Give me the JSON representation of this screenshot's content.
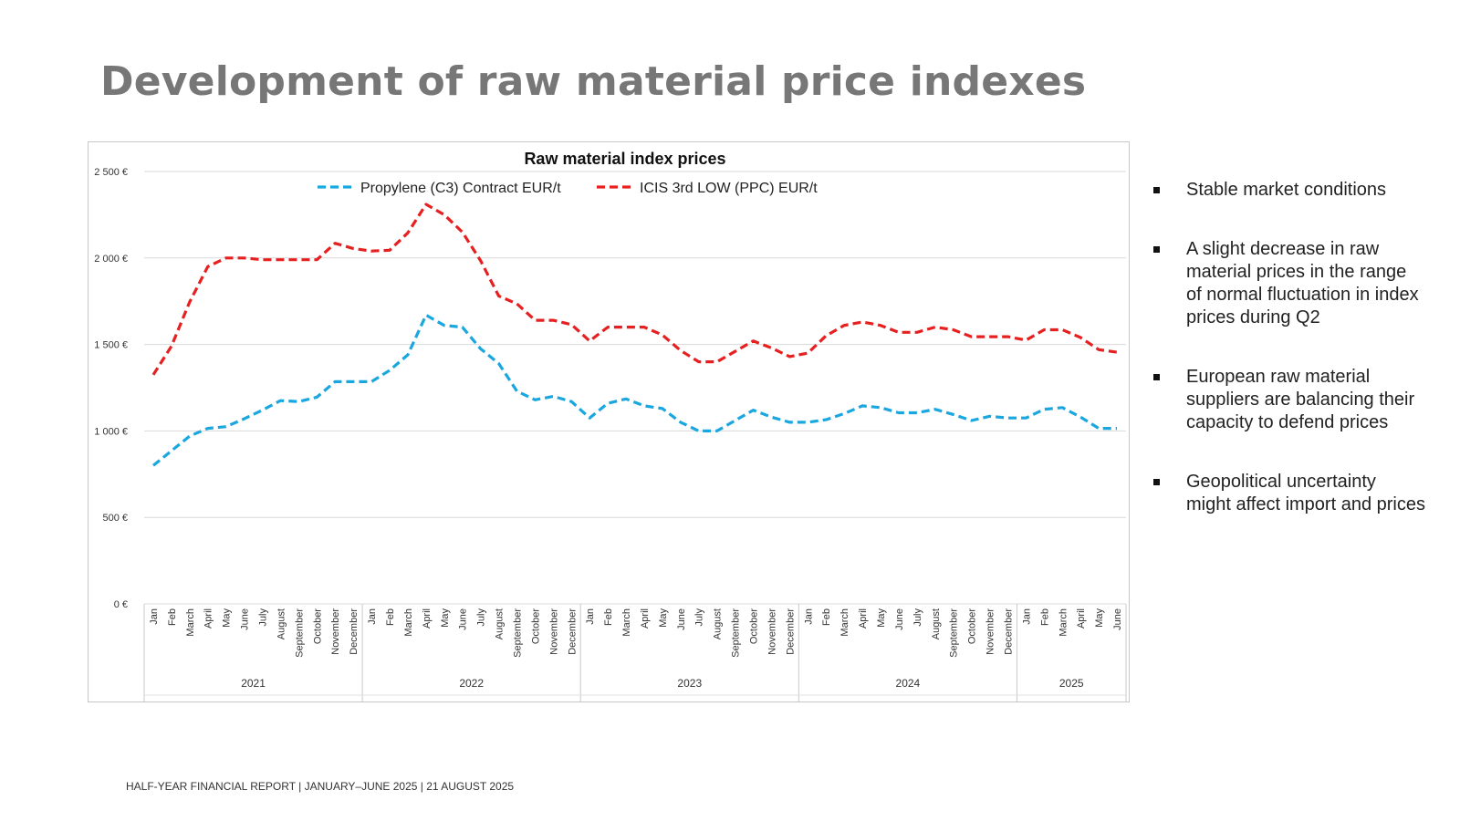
{
  "page": {
    "title": "Development of raw material price indexes",
    "footer": "HALF-YEAR FINANCIAL REPORT  |  JANUARY–JUNE 2025  |  21 AUGUST 2025"
  },
  "bullets": [
    "Stable market conditions",
    "A slight decrease in raw material prices in the range of normal fluctuation in index prices during Q2",
    "European raw material suppliers are balancing their capacity to defend prices",
    "Geopolitical uncertainty might affect import and prices"
  ],
  "chart_data": {
    "type": "line",
    "title": "Raw material index prices",
    "xlabel": "",
    "ylabel": "",
    "ylim": [
      0,
      2500
    ],
    "yticks": [
      0,
      500,
      1000,
      1500,
      2000,
      2500
    ],
    "ytick_labels": [
      "0 €",
      "500 €",
      "1 000 €",
      "1 500 €",
      "2 000 €",
      "2 500 €"
    ],
    "grid": true,
    "legend": "top-center",
    "year_groups": [
      {
        "label": "2021",
        "count": 12
      },
      {
        "label": "2022",
        "count": 12
      },
      {
        "label": "2023",
        "count": 12
      },
      {
        "label": "2024",
        "count": 12
      },
      {
        "label": "2025",
        "count": 6
      }
    ],
    "categories": [
      "Jan",
      "Feb",
      "March",
      "April",
      "May",
      "June",
      "July",
      "August",
      "September",
      "October",
      "November",
      "December",
      "Jan",
      "Feb",
      "March",
      "April",
      "May",
      "June",
      "July",
      "August",
      "September",
      "October",
      "November",
      "December",
      "Jan",
      "Feb",
      "March",
      "April",
      "May",
      "June",
      "July",
      "August",
      "September",
      "October",
      "November",
      "December",
      "Jan",
      "Feb",
      "March",
      "April",
      "May",
      "June",
      "July",
      "August",
      "September",
      "October",
      "November",
      "December",
      "Jan",
      "Feb",
      "March",
      "April",
      "May",
      "June"
    ],
    "series": [
      {
        "name": "Propylene (C3) Contract EUR/t",
        "color": "#1aa7e0",
        "values": [
          800,
          885,
          970,
          1015,
          1025,
          1070,
          1120,
          1175,
          1170,
          1195,
          1285,
          1285,
          1285,
          1350,
          1440,
          1670,
          1610,
          1600,
          1475,
          1390,
          1230,
          1180,
          1200,
          1170,
          1075,
          1160,
          1185,
          1145,
          1130,
          1050,
          1000,
          1000,
          1060,
          1120,
          1080,
          1050,
          1050,
          1065,
          1100,
          1145,
          1135,
          1105,
          1105,
          1125,
          1095,
          1060,
          1085,
          1075,
          1075,
          1125,
          1135,
          1080,
          1015,
          1015
        ]
      },
      {
        "name": "ICIS 3rd LOW (PPC) EUR/t",
        "color": "#e62020",
        "values": [
          1325,
          1490,
          1745,
          1950,
          2000,
          2000,
          1990,
          1990,
          1990,
          1990,
          2085,
          2055,
          2040,
          2045,
          2145,
          2310,
          2250,
          2150,
          1985,
          1780,
          1735,
          1640,
          1640,
          1615,
          1520,
          1600,
          1600,
          1600,
          1555,
          1465,
          1400,
          1400,
          1460,
          1520,
          1480,
          1430,
          1450,
          1550,
          1610,
          1630,
          1610,
          1570,
          1570,
          1600,
          1585,
          1545,
          1545,
          1545,
          1525,
          1585,
          1585,
          1540,
          1470,
          1455
        ]
      }
    ]
  }
}
